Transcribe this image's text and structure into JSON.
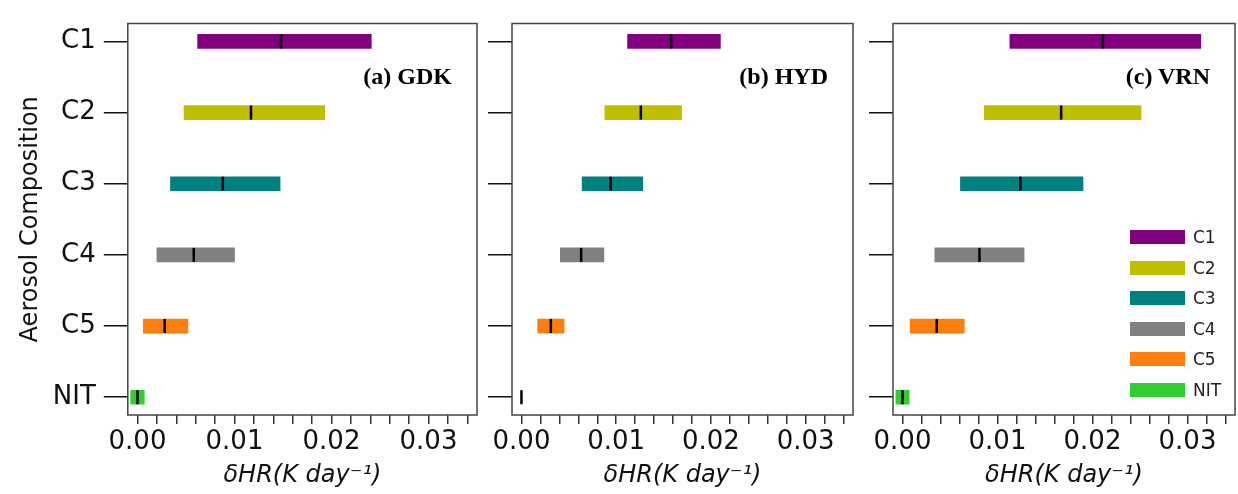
{
  "chart_data": [
    {
      "type": "box",
      "orientation": "horizontal",
      "title": "(a) GDK",
      "ylabel": "Aerosol Composition",
      "xlabel": "δHR(K day⁻¹)",
      "categories": [
        "C1",
        "C2",
        "C3",
        "C4",
        "C5",
        "NIT"
      ],
      "series": [
        {
          "color": "#800080",
          "boxes": [
            {
              "low": 0.0062,
              "q1": 0.0062,
              "median": 0.0148,
              "q3": 0.0241,
              "high": 0.0241
            },
            null,
            null,
            null,
            null,
            null
          ]
        },
        {
          "color": "#bfbf00",
          "boxes": [
            null,
            {
              "low": 0.0048,
              "q1": 0.0048,
              "median": 0.0117,
              "q3": 0.0193,
              "high": 0.0193
            },
            null,
            null,
            null,
            null
          ]
        },
        {
          "color": "#008080",
          "boxes": [
            null,
            null,
            {
              "low": 0.0034,
              "q1": 0.0034,
              "median": 0.0088,
              "q3": 0.0147,
              "high": 0.0147
            },
            null,
            null,
            null
          ]
        },
        {
          "color": "#808080",
          "boxes": [
            null,
            null,
            null,
            {
              "low": 0.002,
              "q1": 0.002,
              "median": 0.0058,
              "q3": 0.01,
              "high": 0.01
            },
            null,
            null
          ]
        },
        {
          "color": "#ff7f0e",
          "boxes": [
            null,
            null,
            null,
            null,
            {
              "low": 0.0006,
              "q1": 0.0006,
              "median": 0.0028,
              "q3": 0.0052,
              "high": 0.0052
            },
            null
          ]
        },
        {
          "color": "#32cd32",
          "boxes": [
            null,
            null,
            null,
            null,
            null,
            {
              "low": -0.0007,
              "q1": -0.0007,
              "median": 0,
              "q3": 0.0007,
              "high": 0.0007
            }
          ]
        }
      ],
      "xlim": [
        -0.001,
        0.035
      ],
      "xticks": [
        {
          "value": 0,
          "label": "0.00"
        },
        {
          "value": 0.002,
          "label": null
        },
        {
          "value": 0.004,
          "label": null
        },
        {
          "value": 0.006,
          "label": null
        },
        {
          "value": 0.008,
          "label": null
        },
        {
          "value": 0.01,
          "label": "0.01"
        },
        {
          "value": 0.012,
          "label": null
        },
        {
          "value": 0.014,
          "label": null
        },
        {
          "value": 0.016,
          "label": null
        },
        {
          "value": 0.018,
          "label": null
        },
        {
          "value": 0.02,
          "label": "0.02"
        },
        {
          "value": 0.022,
          "label": null
        },
        {
          "value": 0.024,
          "label": null
        },
        {
          "value": 0.026,
          "label": null
        },
        {
          "value": 0.028,
          "label": null
        },
        {
          "value": 0.03,
          "label": "0.03"
        },
        {
          "value": 0.032,
          "label": null
        },
        {
          "value": 0.034,
          "label": null
        }
      ]
    },
    {
      "type": "box",
      "orientation": "horizontal",
      "title": "(b) HYD",
      "xlabel": "δHR(K day⁻¹)",
      "tick_labels": "x",
      "categories": [
        null,
        null,
        null,
        null,
        null,
        null
      ],
      "series": [
        {
          "color": "#800080",
          "boxes": [
            {
              "low": 0.0112,
              "q1": 0.0112,
              "median": 0.0158,
              "q3": 0.021,
              "high": 0.021
            },
            null,
            null,
            null,
            null,
            null
          ]
        },
        {
          "color": "#bfbf00",
          "boxes": [
            null,
            {
              "low": 0.0088,
              "q1": 0.0088,
              "median": 0.0126,
              "q3": 0.0169,
              "high": 0.0169
            },
            null,
            null,
            null,
            null
          ]
        },
        {
          "color": "#008080",
          "boxes": [
            null,
            null,
            {
              "low": 0.0064,
              "q1": 0.0064,
              "median": 0.0094,
              "q3": 0.0128,
              "high": 0.0128
            },
            null,
            null,
            null
          ]
        },
        {
          "color": "#808080",
          "boxes": [
            null,
            null,
            null,
            {
              "low": 0.0041,
              "q1": 0.0041,
              "median": 0.0063,
              "q3": 0.0087,
              "high": 0.0087
            },
            null,
            null
          ]
        },
        {
          "color": "#ff7f0e",
          "boxes": [
            null,
            null,
            null,
            null,
            {
              "low": 0.0017,
              "q1": 0.0017,
              "median": 0.0031,
              "q3": 0.0045,
              "high": 0.0045
            },
            null
          ]
        },
        {
          "color": "#32cd32",
          "boxes": [
            null,
            null,
            null,
            null,
            null,
            {
              "low": 0,
              "q1": 0,
              "median": 0,
              "q3": 0,
              "high": 0
            }
          ]
        }
      ],
      "xlim": [
        -0.001,
        0.035
      ],
      "xticks": [
        {
          "value": 0,
          "label": "0.00"
        },
        {
          "value": 0.002,
          "label": null
        },
        {
          "value": 0.004,
          "label": null
        },
        {
          "value": 0.006,
          "label": null
        },
        {
          "value": 0.008,
          "label": null
        },
        {
          "value": 0.01,
          "label": "0.01"
        },
        {
          "value": 0.012,
          "label": null
        },
        {
          "value": 0.014,
          "label": null
        },
        {
          "value": 0.016,
          "label": null
        },
        {
          "value": 0.018,
          "label": null
        },
        {
          "value": 0.02,
          "label": "0.02"
        },
        {
          "value": 0.022,
          "label": null
        },
        {
          "value": 0.024,
          "label": null
        },
        {
          "value": 0.026,
          "label": null
        },
        {
          "value": 0.028,
          "label": null
        },
        {
          "value": 0.03,
          "label": "0.03"
        },
        {
          "value": 0.032,
          "label": null
        },
        {
          "value": 0.034,
          "label": null
        }
      ]
    },
    {
      "type": "box",
      "orientation": "horizontal",
      "title": "(c) VRN",
      "xlabel": "δHR(K day⁻¹)",
      "tick_labels": "x",
      "legend": "bottom right",
      "categories": [
        null,
        null,
        null,
        null,
        null,
        null
      ],
      "series": [
        {
          "name": "C1",
          "color": "#800080",
          "boxes": [
            {
              "low": 0.0113,
              "q1": 0.0113,
              "median": 0.0211,
              "q3": 0.0314,
              "high": 0.0314
            },
            null,
            null,
            null,
            null,
            null
          ]
        },
        {
          "name": "C2",
          "color": "#bfbf00",
          "boxes": [
            null,
            {
              "low": 0.0086,
              "q1": 0.0086,
              "median": 0.0167,
              "q3": 0.0251,
              "high": 0.0251
            },
            null,
            null,
            null,
            null
          ]
        },
        {
          "name": "C3",
          "color": "#008080",
          "boxes": [
            null,
            null,
            {
              "low": 0.0061,
              "q1": 0.0061,
              "median": 0.0124,
              "q3": 0.019,
              "high": 0.019
            },
            null,
            null,
            null
          ]
        },
        {
          "name": "C4",
          "color": "#808080",
          "boxes": [
            null,
            null,
            null,
            {
              "low": 0.0034,
              "q1": 0.0034,
              "median": 0.0081,
              "q3": 0.0128,
              "high": 0.0128
            },
            null,
            null
          ]
        },
        {
          "name": "C5",
          "color": "#ff7f0e",
          "boxes": [
            null,
            null,
            null,
            null,
            {
              "low": 0.0008,
              "q1": 0.0008,
              "median": 0.0036,
              "q3": 0.0065,
              "high": 0.0065
            },
            null
          ]
        },
        {
          "name": "NIT",
          "color": "#32cd32",
          "boxes": [
            null,
            null,
            null,
            null,
            null,
            {
              "low": -0.0007,
              "q1": -0.0007,
              "median": 0,
              "q3": 0.0007,
              "high": 0.0007
            }
          ]
        }
      ],
      "xlim": [
        -0.001,
        0.035
      ],
      "xticks": [
        {
          "value": 0,
          "label": "0.00"
        },
        {
          "value": 0.002,
          "label": null
        },
        {
          "value": 0.004,
          "label": null
        },
        {
          "value": 0.006,
          "label": null
        },
        {
          "value": 0.008,
          "label": null
        },
        {
          "value": 0.01,
          "label": "0.01"
        },
        {
          "value": 0.012,
          "label": null
        },
        {
          "value": 0.014,
          "label": null
        },
        {
          "value": 0.016,
          "label": null
        },
        {
          "value": 0.018,
          "label": null
        },
        {
          "value": 0.02,
          "label": "0.02"
        },
        {
          "value": 0.022,
          "label": null
        },
        {
          "value": 0.024,
          "label": null
        },
        {
          "value": 0.026,
          "label": null
        },
        {
          "value": 0.028,
          "label": null
        },
        {
          "value": 0.03,
          "label": "0.03"
        },
        {
          "value": 0.032,
          "label": null
        },
        {
          "value": 0.034,
          "label": null
        }
      ]
    }
  ]
}
